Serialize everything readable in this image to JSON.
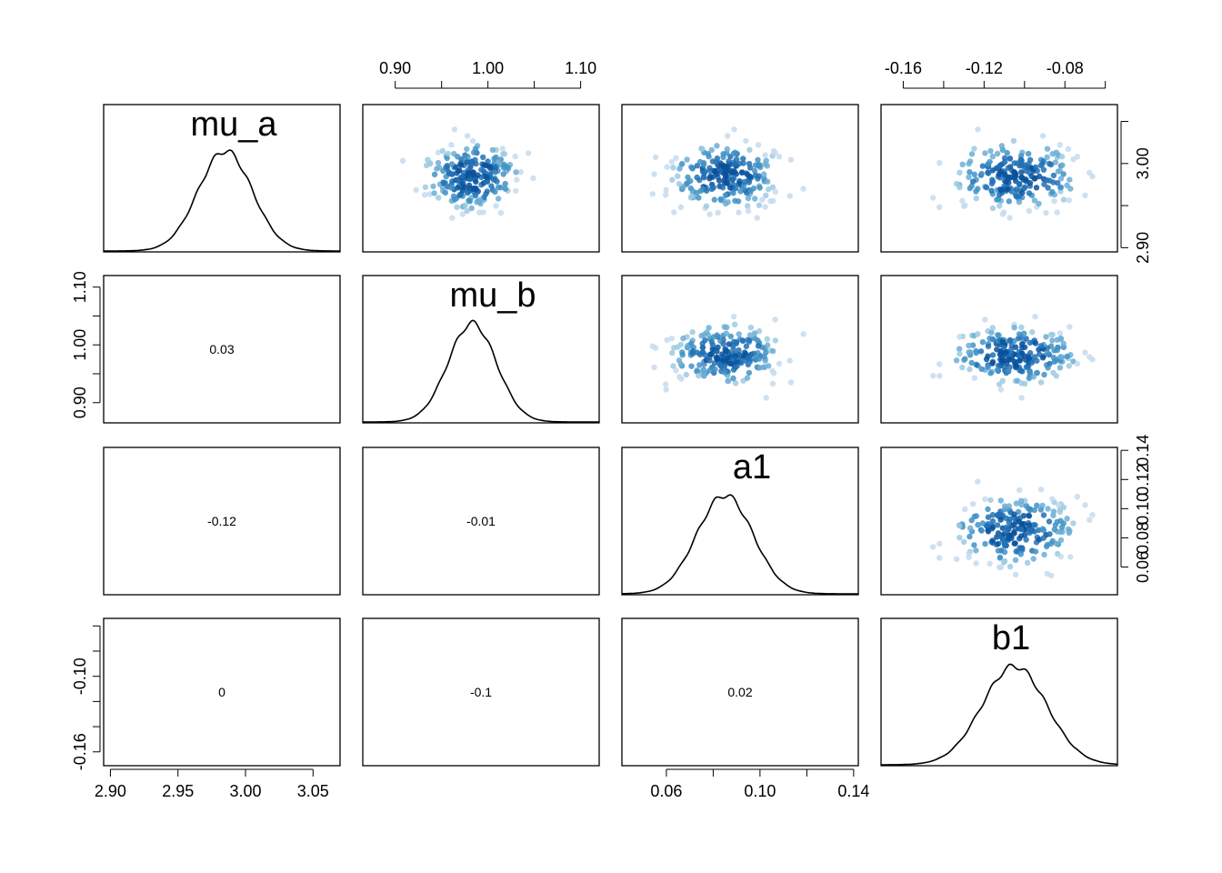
{
  "chart_data": {
    "type": "scatter-matrix",
    "variables": [
      {
        "name": "mu_a",
        "mean": 2.985,
        "sd": 0.02,
        "lim": [
          2.895,
          3.07
        ],
        "ticks": [
          2.9,
          2.95,
          3.0,
          3.05
        ],
        "tick_labels": [
          "2.90",
          "2.95",
          "3.00",
          "3.05"
        ],
        "density_ymax_fraction": 0.68
      },
      {
        "name": "mu_b",
        "mean": 0.983,
        "sd": 0.026,
        "lim": [
          0.865,
          1.12
        ],
        "ticks": [
          0.9,
          0.95,
          1.0,
          1.05,
          1.1
        ],
        "tick_labels": [
          "0.90",
          "",
          "1.00",
          "",
          "1.10"
        ],
        "density_ymax_fraction": 0.67
      },
      {
        "name": "a1",
        "mean": 0.085,
        "sd": 0.012,
        "lim": [
          0.041,
          0.142
        ],
        "ticks": [
          0.06,
          0.08,
          0.1,
          0.12,
          0.14
        ],
        "tick_labels": [
          "0.06",
          "",
          "0.10",
          "",
          "0.14"
        ],
        "density_ymax_fraction": 0.67
      },
      {
        "name": "b1",
        "mean": -0.105,
        "sd": 0.016,
        "lim": [
          -0.171,
          -0.054
        ],
        "ticks": [
          -0.16,
          -0.14,
          -0.12,
          -0.1,
          -0.08,
          -0.06
        ],
        "tick_labels": [
          "-0.16",
          "",
          "-0.12",
          "",
          "-0.08",
          ""
        ],
        "density_ymax_fraction": 0.67
      }
    ],
    "correlations": [
      {
        "row": 1,
        "col": 0,
        "text": "0.03"
      },
      {
        "row": 2,
        "col": 0,
        "text": "-0.12"
      },
      {
        "row": 2,
        "col": 1,
        "text": "-0.01"
      },
      {
        "row": 3,
        "col": 0,
        "text": "0"
      },
      {
        "row": 3,
        "col": 1,
        "text": "-0.1"
      },
      {
        "row": 3,
        "col": 2,
        "text": "0.02"
      }
    ],
    "left_axis_rows": [
      {
        "row": 1,
        "ticks": [
          0.9,
          0.95,
          1.0,
          1.05,
          1.1
        ],
        "labels": [
          "0.90",
          "",
          "1.00",
          "",
          "1.10"
        ]
      },
      {
        "row": 3,
        "ticks": [
          -0.16,
          -0.14,
          -0.12,
          -0.1,
          -0.08,
          -0.06
        ],
        "labels": [
          "-0.16",
          "",
          "",
          "-0.10",
          "",
          ""
        ]
      }
    ],
    "right_axis_rows": [
      {
        "row": 0,
        "ticks": [
          2.9,
          2.95,
          3.0,
          3.05
        ],
        "labels": [
          "2.90",
          "",
          "3.00",
          ""
        ]
      },
      {
        "row": 2,
        "ticks": [
          0.06,
          0.08,
          0.1,
          0.12,
          0.14
        ],
        "labels": [
          "0.06",
          "0.08",
          "0.10",
          "0.12",
          "0.14"
        ]
      }
    ],
    "top_axis_cols": [
      1,
      3
    ],
    "bottom_axis_cols": [
      0,
      2
    ],
    "point_samples": 220,
    "point_colors": [
      "#c6dbef",
      "#9ecae1",
      "#6baed6",
      "#4292c6",
      "#2171b5",
      "#08519c"
    ]
  }
}
